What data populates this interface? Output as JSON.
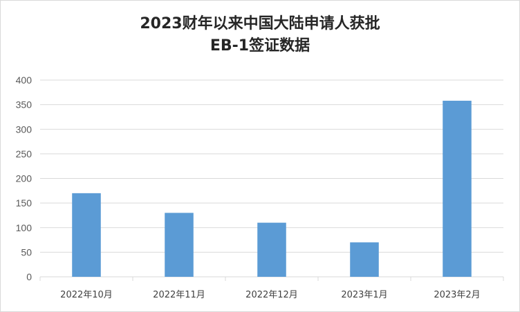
{
  "chart_data": {
    "type": "bar",
    "title_lines": [
      "2023财年以来中国大陆申请人获批",
      "EB-1签证数据"
    ],
    "categories": [
      "2022年10月",
      "2022年11月",
      "2022年12月",
      "2023年1月",
      "2023年2月"
    ],
    "values": [
      170,
      130,
      110,
      70,
      358
    ],
    "yticks": [
      "0",
      "50",
      "100",
      "150",
      "200",
      "250",
      "300",
      "350",
      "400"
    ],
    "ylim": [
      0,
      400
    ],
    "grid": true,
    "bar_color": "#5b9bd5",
    "grid_color": "#d9d9d9"
  }
}
